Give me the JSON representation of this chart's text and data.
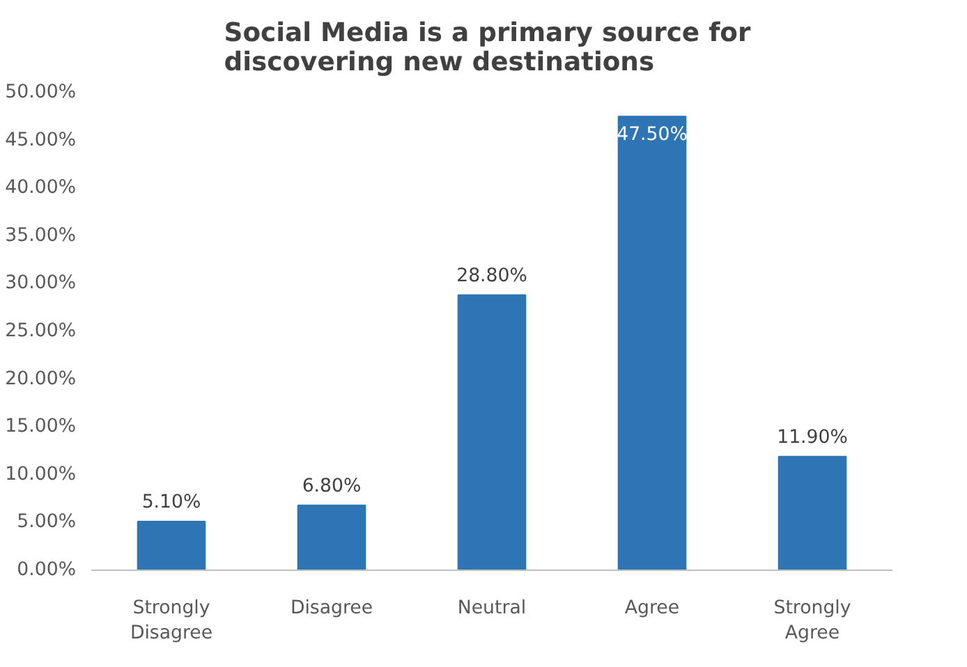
{
  "chart_data": {
    "type": "bar",
    "title": "Social Media is a primary source  for discovering new destinations",
    "categories": [
      "Strongly Disagree",
      "Disagree",
      "Neutral",
      "Agree",
      "Strongly Agree"
    ],
    "values": [
      5.1,
      6.8,
      28.8,
      47.5,
      11.9
    ],
    "color": "#2e75b6",
    "value_labels": [
      "5.10%",
      "6.80%",
      "28.80%",
      "47.50%",
      "11.90%"
    ],
    "ylim": [
      0,
      50
    ],
    "yticks": [
      {
        "value": 0,
        "label": "0.00%"
      },
      {
        "value": 5,
        "label": "5.00%"
      },
      {
        "value": 10,
        "label": "10.00%"
      },
      {
        "value": 15,
        "label": "15.00%"
      },
      {
        "value": 20,
        "label": "20.00%"
      },
      {
        "value": 25,
        "label": "25.00%"
      },
      {
        "value": 30,
        "label": "30.00%"
      },
      {
        "value": 35,
        "label": "35.00%"
      },
      {
        "value": 40,
        "label": "40.00%"
      },
      {
        "value": 45,
        "label": "45.00%"
      },
      {
        "value": 50,
        "label": "50.00%"
      }
    ],
    "grid": false
  }
}
